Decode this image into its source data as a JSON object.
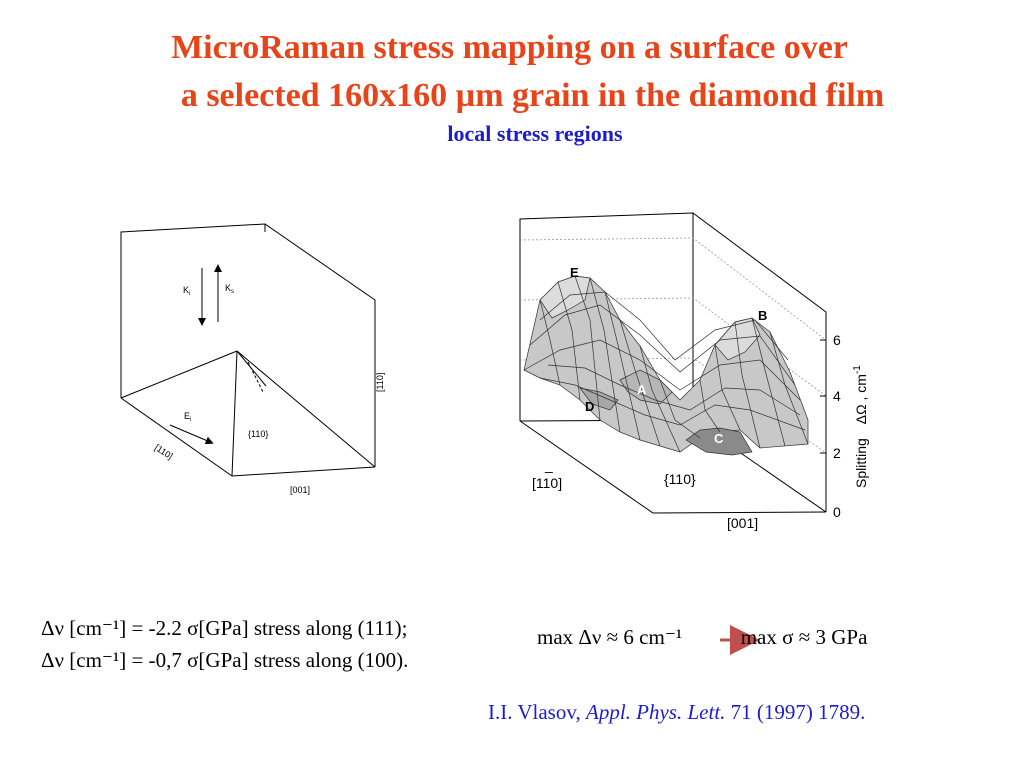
{
  "slide": {
    "title_line1": "MicroRaman stress mapping on a surface over",
    "title_line2": "a selected 160x160 µm grain in the diamond film",
    "subtitle": "local stress regions"
  },
  "left_diagram": {
    "label_ki": "K",
    "label_ki_sub": "i",
    "label_ks": "K",
    "label_ks_sub": "s",
    "label_ei": "E",
    "label_ei_sub": "i",
    "face_label": "{110}",
    "axis_110_left": "[110]",
    "axis_110_right": "[110]",
    "axis_001": "[001]"
  },
  "right_plot": {
    "region_labels": [
      "E",
      "B",
      "A",
      "D",
      "C"
    ],
    "z_ticks": [
      "6",
      "4",
      "2",
      "0"
    ],
    "z_axis_label_prefix": "Splitting",
    "z_axis_label_symbol": "ΔΩ , cm",
    "z_axis_label_exp": "-1",
    "axis_110_bar": "_",
    "axis_110": "[110]",
    "face_label": "{110}",
    "axis_001": "[001]"
  },
  "equations": {
    "line1": "Δν [cm⁻¹] = -2.2 σ[GPa] stress along (111);",
    "line2": "Δν [cm⁻¹] = -0,7 σ[GPa] stress along (100)."
  },
  "max_relation": {
    "left": "max Δν ≈ 6 cm⁻¹",
    "right": "max σ ≈ 3 GPa",
    "arrow_color": "#c0504d"
  },
  "citation": {
    "authors": "I.I. Vlasov, ",
    "journal": "Appl. Phys. Lett.",
    "rest": " 71 (1997) 1789."
  },
  "colors": {
    "title": "#e8441a",
    "subtitle": "#1c1ccc",
    "surface_fill": "#c8c8c8",
    "surface_dark": "#7a7a7a"
  }
}
